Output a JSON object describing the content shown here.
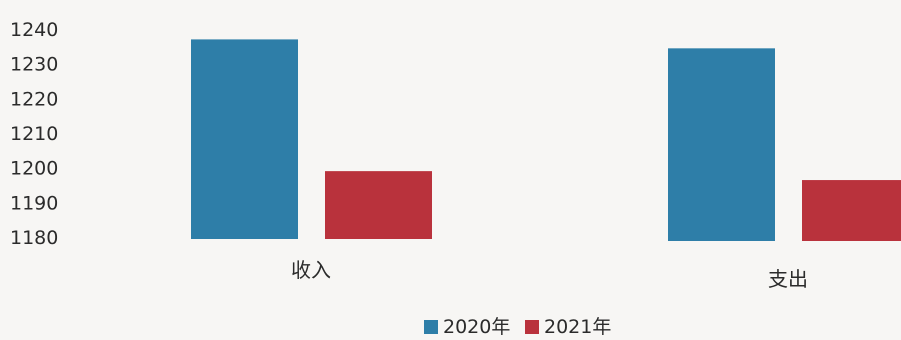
{
  "chart_data": {
    "type": "bar",
    "categories": [
      "收入",
      "支出"
    ],
    "series": [
      {
        "name": "2020年",
        "values": [
          1237,
          1235
        ],
        "color": "#2e7ea8"
      },
      {
        "name": "2021年",
        "values": [
          1199,
          1197
        ],
        "color": "#b9323c"
      }
    ],
    "yticks": [
      1180,
      1190,
      1200,
      1210,
      1220,
      1230,
      1240
    ],
    "ylim": [
      1180,
      1240
    ],
    "grid": false,
    "legend": "bottom-center"
  }
}
